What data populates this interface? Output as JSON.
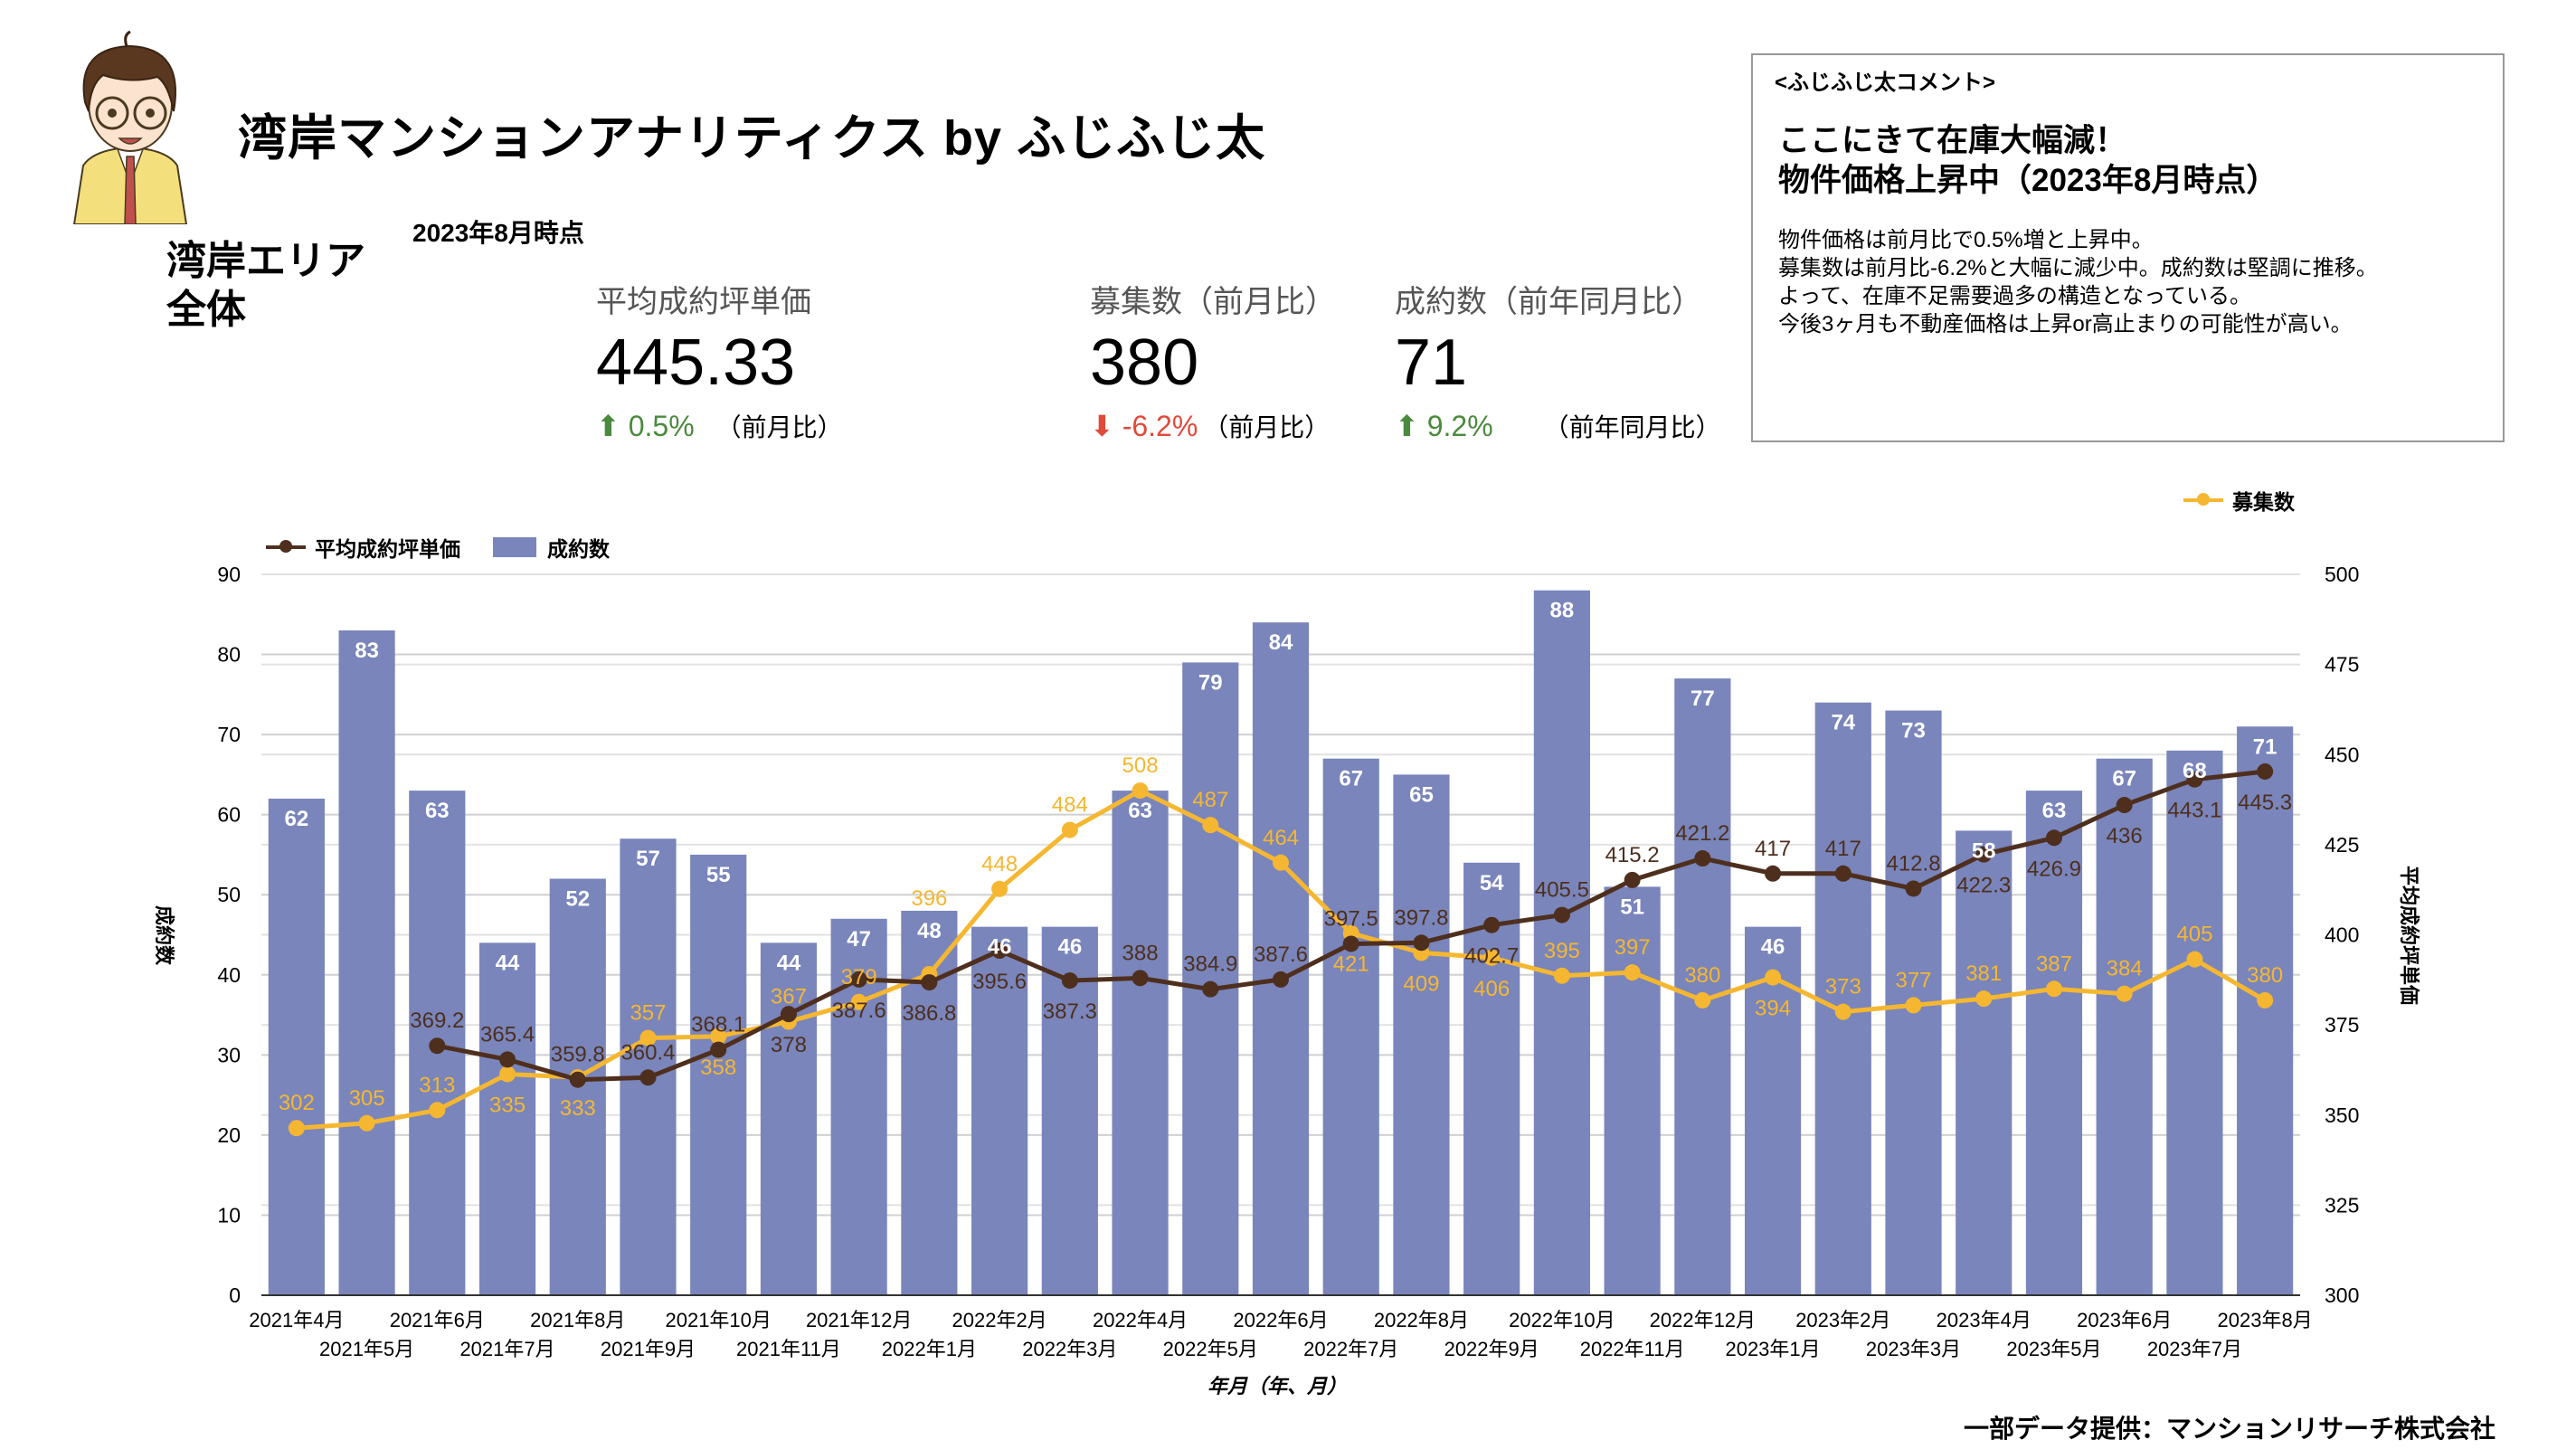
{
  "header": {
    "title": "湾岸マンションアナリティクス by ふじふじ太",
    "as_of": "2023年8月時点",
    "area_line1": "湾岸エリア",
    "area_line2": "全体"
  },
  "kpis": [
    {
      "label": "平均成約坪単価",
      "value": "445.33",
      "change": "0.5%",
      "direction": "up",
      "compare": "（前月比）"
    },
    {
      "label": "募集数（前月比）",
      "value": "380",
      "change": "-6.2%",
      "direction": "down",
      "compare": "（前月比）"
    },
    {
      "label": "成約数（前年同月比）",
      "value": "71",
      "change": "9.2%",
      "direction": "up",
      "compare": "（前年同月比）"
    }
  ],
  "comment": {
    "heading": "<ふじふじ太コメント>",
    "headline_1": "ここにきて在庫大幅減！",
    "headline_2": "物件価格上昇中（2023年8月時点）",
    "lines": [
      "物件価格は前月比で0.5%増と上昇中。",
      "募集数は前月比-6.2%と大幅に減少中。成約数は堅調に推移。",
      "よって、在庫不足需要過多の構造となっている。",
      "今後3ヶ月も不動産価格は上昇or高止まりの可能性が高い。"
    ]
  },
  "footer": "一部データ提供：マンションリサーチ株式会社",
  "colors": {
    "bar": "#7985bb",
    "price_line": "#4e2f1e",
    "listings_line": "#f5b731",
    "up": "#4a8a3d",
    "down": "#e04a3a"
  },
  "chart_data": {
    "type": "bar+line",
    "xlabel": "年月（年、月）",
    "ylabel_left": "成約数",
    "ylabel_right": "平均成約坪単価",
    "ylim_left": [
      0,
      90
    ],
    "yticks_left": [
      0,
      10,
      20,
      30,
      40,
      50,
      60,
      70,
      80,
      90
    ],
    "ylim_right": [
      300,
      500
    ],
    "yticks_right": [
      300,
      325,
      350,
      375,
      400,
      425,
      450,
      475,
      500
    ],
    "grid": true,
    "categories": [
      "2021年4月",
      "2021年5月",
      "2021年6月",
      "2021年7月",
      "2021年8月",
      "2021年9月",
      "2021年10月",
      "2021年11月",
      "2021年12月",
      "2022年1月",
      "2022年2月",
      "2022年3月",
      "2022年4月",
      "2022年5月",
      "2022年6月",
      "2022年7月",
      "2022年8月",
      "2022年9月",
      "2022年10月",
      "2022年11月",
      "2022年12月",
      "2023年1月",
      "2023年2月",
      "2023年3月",
      "2023年4月",
      "2023年5月",
      "2023年6月",
      "2023年7月",
      "2023年8月"
    ],
    "series": [
      {
        "name": "成約数",
        "type": "bar",
        "axis": "left",
        "values": [
          62,
          83,
          63,
          44,
          52,
          57,
          55,
          44,
          47,
          48,
          46,
          46,
          63,
          79,
          84,
          67,
          65,
          54,
          88,
          51,
          77,
          46,
          74,
          73,
          58,
          63,
          67,
          68,
          71
        ]
      },
      {
        "name": "平均成約坪単価",
        "type": "line",
        "axis": "right",
        "values": [
          null,
          null,
          369.2,
          365.4,
          359.8,
          360.4,
          368.1,
          378,
          387.6,
          386.8,
          395.6,
          387.3,
          388,
          384.9,
          387.6,
          397.5,
          397.8,
          402.7,
          405.5,
          415.2,
          421.2,
          417,
          417,
          412.8,
          422.3,
          426.9,
          436,
          443.1,
          445.3
        ]
      },
      {
        "name": "募集数",
        "type": "line",
        "axis": "hidden",
        "ylim": [
          200,
          640
        ],
        "values": [
          302,
          305,
          313,
          335,
          333,
          357,
          358,
          367,
          379,
          396,
          448,
          484,
          508,
          487,
          464,
          421,
          409,
          406,
          395,
          397,
          380,
          394,
          373,
          377,
          381,
          387,
          384,
          405,
          380
        ]
      }
    ],
    "legend": {
      "left": [
        "平均成約坪単価",
        "成約数"
      ],
      "right": [
        "募集数"
      ]
    }
  }
}
